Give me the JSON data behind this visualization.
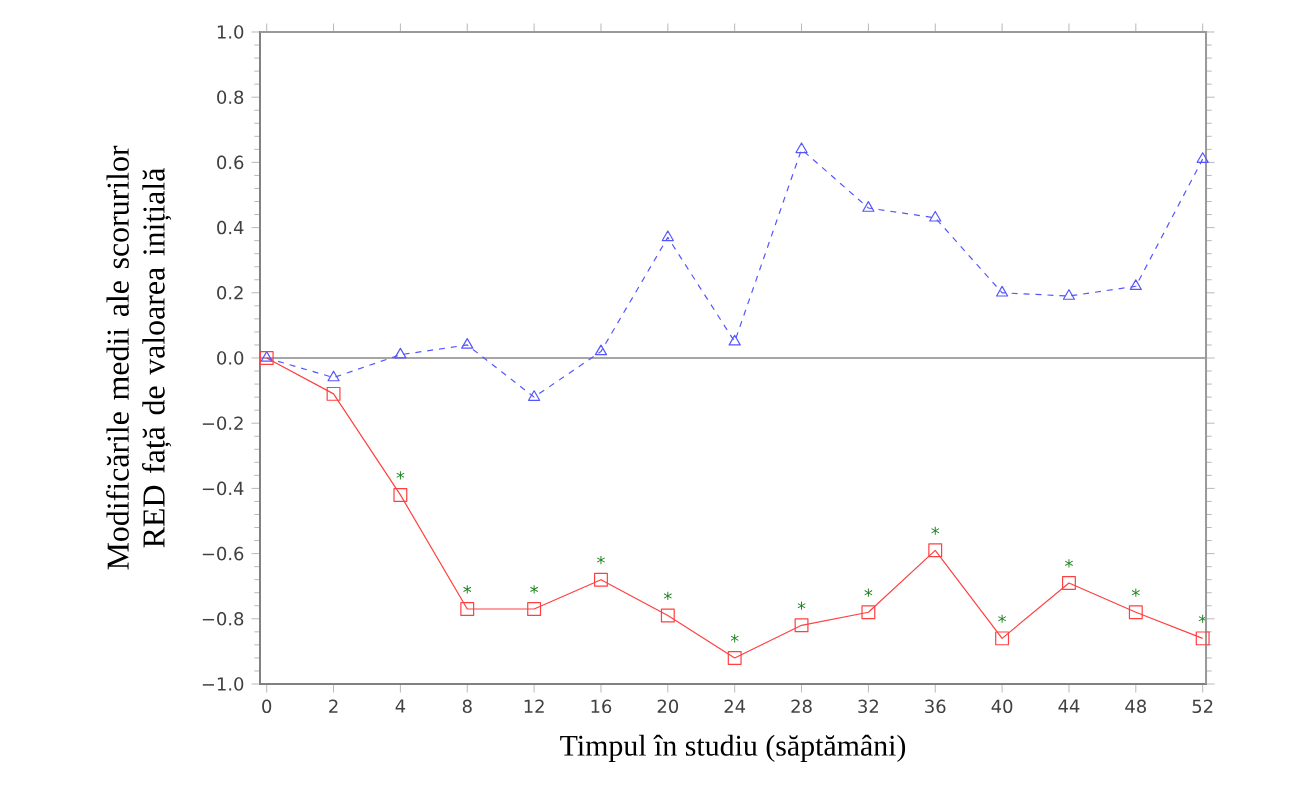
{
  "chart_data": {
    "type": "line",
    "xlabel": "Timpul în studiu (săptămâni)",
    "ylabel": "Modificările medii ale scorurilor RED față de valoarea inițială",
    "categories": [
      "0",
      "2",
      "4",
      "8",
      "12",
      "16",
      "20",
      "24",
      "28",
      "32",
      "36",
      "40",
      "44",
      "48",
      "52"
    ],
    "series": [
      {
        "color": "#5555ff",
        "marker": "triangle",
        "line_style": "dashed",
        "values": [
          0,
          -0.06,
          0.01,
          0.04,
          -0.12,
          0.02,
          0.37,
          0.05,
          0.64,
          0.46,
          0.43,
          0.2,
          0.19,
          0.22,
          0.61
        ]
      },
      {
        "color": "#ff4040",
        "marker": "square",
        "line_style": "solid",
        "values": [
          0,
          -0.11,
          -0.42,
          -0.77,
          -0.77,
          -0.68,
          -0.79,
          -0.92,
          -0.82,
          -0.78,
          -0.59,
          -0.86,
          -0.69,
          -0.78,
          -0.86
        ]
      }
    ],
    "ylim": [
      -1.0,
      1.0
    ],
    "yticks": [
      {
        "value": -1.0,
        "label": "−1.0"
      },
      {
        "value": -0.8,
        "label": "−0.8"
      },
      {
        "value": -0.6,
        "label": "−0.6"
      },
      {
        "value": -0.4,
        "label": "−0.4"
      },
      {
        "value": -0.2,
        "label": "−0.2"
      },
      {
        "value": 0.0,
        "label": "0.0"
      },
      {
        "value": 0.2,
        "label": "0.2"
      },
      {
        "value": 0.4,
        "label": "0.4"
      },
      {
        "value": 0.6,
        "label": "0.6"
      },
      {
        "value": 0.8,
        "label": "0.8"
      },
      {
        "value": 1.0,
        "label": "1.0"
      }
    ],
    "ref_lines": [
      {
        "axis": "y",
        "value": 0,
        "color": "#888888"
      }
    ],
    "annotations": [
      {
        "text": "*",
        "x": "4",
        "y": -0.42
      },
      {
        "text": "*",
        "x": "8",
        "y": -0.77
      },
      {
        "text": "*",
        "x": "12",
        "y": -0.77
      },
      {
        "text": "*",
        "x": "16",
        "y": -0.68
      },
      {
        "text": "*",
        "x": "20",
        "y": -0.79
      },
      {
        "text": "*",
        "x": "24",
        "y": -0.92
      },
      {
        "text": "*",
        "x": "28",
        "y": -0.82
      },
      {
        "text": "*",
        "x": "32",
        "y": -0.78
      },
      {
        "text": "*",
        "x": "36",
        "y": -0.59
      },
      {
        "text": "*",
        "x": "40",
        "y": -0.86
      },
      {
        "text": "*",
        "x": "44",
        "y": -0.69
      },
      {
        "text": "*",
        "x": "48",
        "y": -0.78
      },
      {
        "text": "*",
        "x": "52",
        "y": -0.86
      }
    ]
  }
}
